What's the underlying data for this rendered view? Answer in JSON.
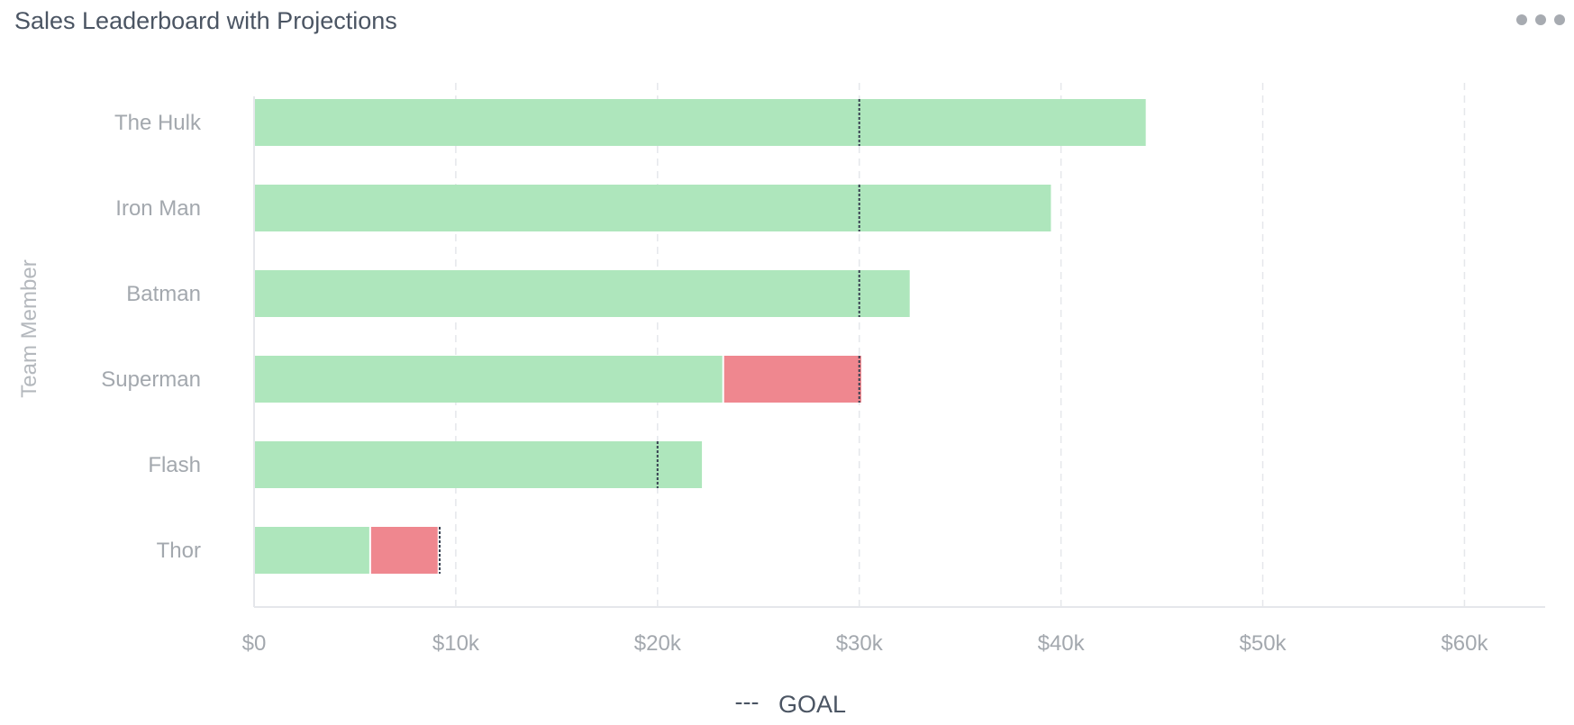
{
  "widget": {
    "title": "Sales Leaderboard with Projections",
    "menu_icon": "more-horizontal-icon"
  },
  "chart_data": {
    "type": "bar",
    "orientation": "horizontal",
    "stacked": true,
    "title": "Sales Leaderboard with Projections",
    "ylabel": "Team Member",
    "xlabel": "",
    "categories": [
      "The Hulk",
      "Iron Man",
      "Batman",
      "Superman",
      "Flash",
      "Thor"
    ],
    "series": [
      {
        "color": "#aee6bc",
        "values": [
          44200,
          39500,
          32500,
          23300,
          22200,
          5800
        ]
      },
      {
        "color": "#ef878f",
        "values": [
          0,
          0,
          0,
          6800,
          0,
          3300
        ]
      }
    ],
    "goal": {
      "name": "GOAL",
      "values": [
        30000,
        30000,
        30000,
        30000,
        20000,
        9200
      ]
    },
    "xlim": [
      0,
      64000
    ],
    "xticks": [
      0,
      10000,
      20000,
      30000,
      40000,
      50000,
      60000
    ],
    "xtick_labels": [
      "$0",
      "$10k",
      "$20k",
      "$30k",
      "$40k",
      "$50k",
      "$60k"
    ],
    "grid": true,
    "legend": {
      "position": "bottom-center",
      "items": [
        {
          "symbol": "---",
          "label": "GOAL"
        }
      ]
    }
  }
}
